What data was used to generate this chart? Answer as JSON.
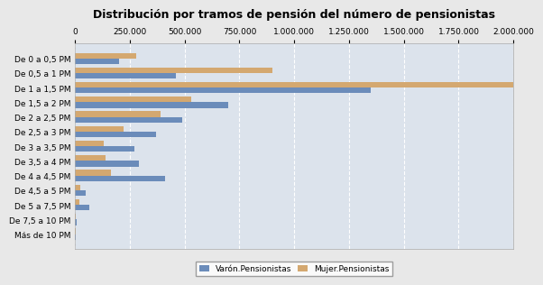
{
  "title": "Distribución por tramos de pensión del número de pensionistas",
  "categories": [
    "De 0 a 0,5 PM",
    "De 0,5 a 1 PM",
    "De 1 a 1,5 PM",
    "De 1,5 a 2 PM",
    "De 2 a 2,5 PM",
    "De 2,5 a 3 PM",
    "De 3 a 3,5 PM",
    "De 3,5 a 4 PM",
    "De 4 a 4,5 PM",
    "De 4,5 a 5 PM",
    "De 5 a 7,5 PM",
    "De 7,5 a 10 PM",
    "Más de 10 PM"
  ],
  "varon": [
    200000,
    460000,
    1350000,
    700000,
    490000,
    370000,
    270000,
    290000,
    410000,
    50000,
    65000,
    8000,
    4000
  ],
  "mujer": [
    280000,
    900000,
    2000000,
    530000,
    390000,
    220000,
    130000,
    140000,
    165000,
    22000,
    18000,
    4000,
    2000
  ],
  "varon_color": "#6b8cba",
  "mujer_color": "#d4a870",
  "legend_labels": [
    "Varón.Pensionistas",
    "Mujer.Pensionistas"
  ],
  "xlim": [
    0,
    2000000
  ],
  "xticks": [
    0,
    250000,
    500000,
    750000,
    1000000,
    1250000,
    1500000,
    1750000,
    2000000
  ],
  "background_color": "#e8e8e8",
  "plot_bg_color": "#dce3ec",
  "title_fontsize": 9,
  "tick_fontsize": 6.5,
  "label_fontsize": 6.5
}
